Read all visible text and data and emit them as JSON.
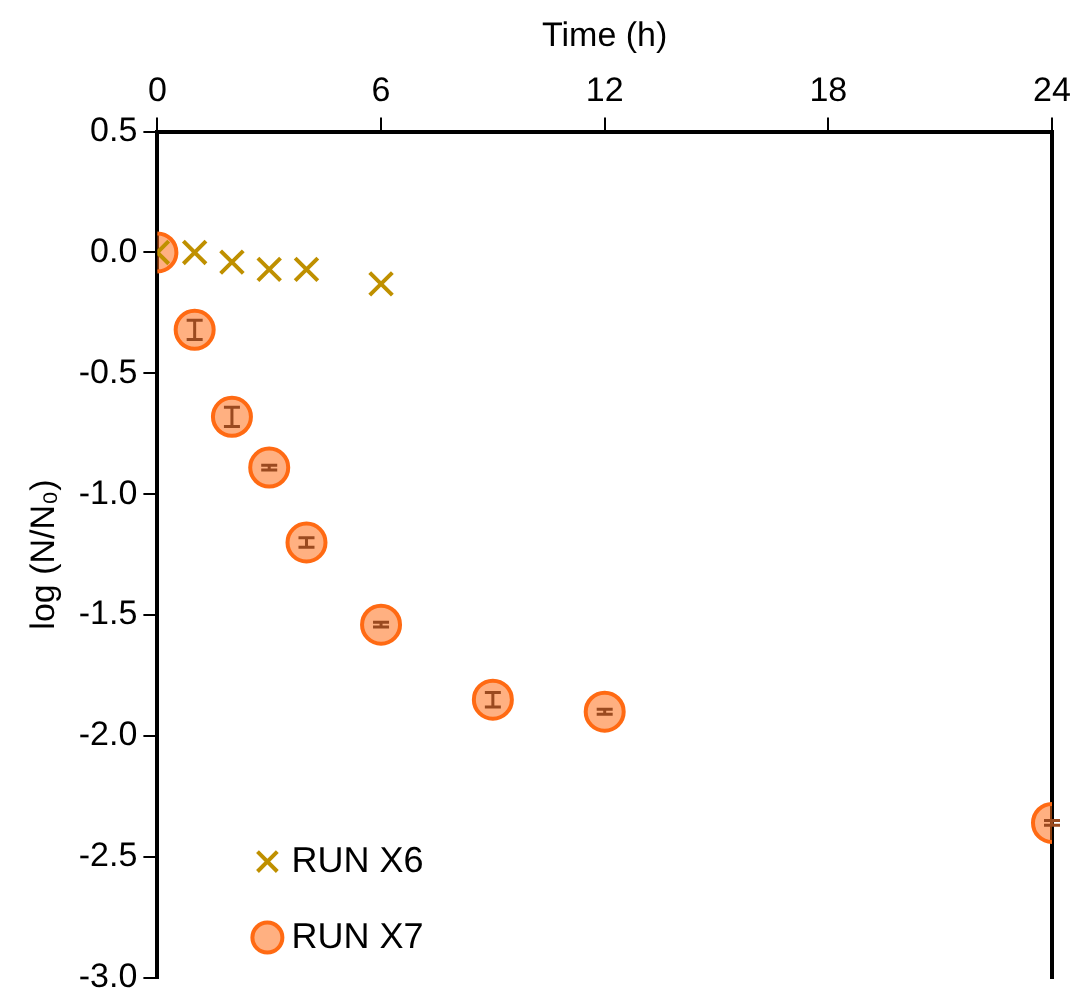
{
  "chart_data": {
    "type": "scatter",
    "xlabel": "Time (h)",
    "ylabel": "log (N/N₀)",
    "xlim": [
      0,
      24
    ],
    "xticks": [
      0,
      6,
      12,
      18,
      24
    ],
    "ylim": [
      -3.0,
      0.5
    ],
    "yticks": [
      {
        "value": 0.5,
        "label": "0.5"
      },
      {
        "value": 0,
        "label": "0.0"
      },
      {
        "value": -0.5,
        "label": "-0.5"
      },
      {
        "value": -1,
        "label": "-1.0"
      },
      {
        "value": -1.5,
        "label": "-1.5"
      },
      {
        "value": -2,
        "label": "-2.0"
      },
      {
        "value": -2.5,
        "label": "-2.5"
      },
      {
        "value": -3,
        "label": "-3.0"
      }
    ],
    "grid": false,
    "legend": "bottom left",
    "series": [
      {
        "name": "RUN X6",
        "color": "#bf9000",
        "marker": "cross",
        "x": [
          0,
          1,
          2,
          3,
          4,
          6
        ],
        "values": [
          0,
          0,
          -0.04,
          -0.07,
          -0.07,
          -0.13
        ]
      },
      {
        "name": "RUN X7",
        "color": "#ff6a13",
        "marker": "circle",
        "x": [
          0,
          1,
          2,
          3,
          4,
          6,
          9,
          12,
          24
        ],
        "values": [
          0,
          -0.32,
          -0.68,
          -0.89,
          -1.2,
          -1.54,
          -1.85,
          -1.9,
          -2.36
        ],
        "errors": [
          null,
          0.04,
          0.04,
          0.01,
          0.02,
          0.01,
          0.03,
          0.01,
          0.01
        ]
      }
    ]
  }
}
